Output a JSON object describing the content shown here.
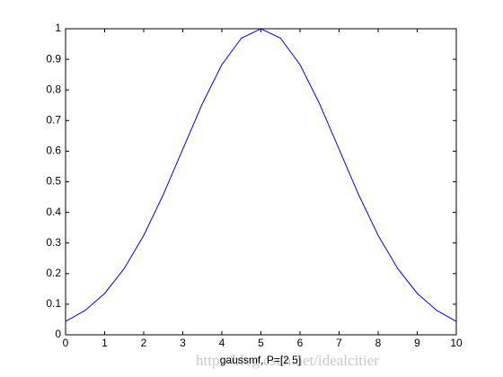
{
  "chart_data": {
    "type": "line",
    "xlabel": "gaussmf, P=[2 5]",
    "watermark": "http://blog.csdn.net/idealcitier",
    "x": [
      0,
      0.5,
      1,
      1.5,
      2,
      2.5,
      3,
      3.5,
      4,
      4.5,
      5,
      5.5,
      6,
      6.5,
      7,
      7.5,
      8,
      8.5,
      9,
      9.5,
      10
    ],
    "series": [
      {
        "color": "#0000ff",
        "values": [
          0.0439,
          0.0796,
          0.1353,
          0.2163,
          0.3247,
          0.4578,
          0.6065,
          0.7548,
          0.8825,
          0.9692,
          1,
          0.9692,
          0.8825,
          0.7548,
          0.6065,
          0.4578,
          0.3247,
          0.2163,
          0.1353,
          0.0796,
          0.0439
        ]
      }
    ],
    "xlim": [
      0,
      10
    ],
    "xticks": [
      0,
      1,
      2,
      3,
      4,
      5,
      6,
      7,
      8,
      9,
      10
    ],
    "ylim": [
      0,
      1
    ],
    "yticks": [
      0,
      0.1,
      0.2,
      0.3,
      0.4,
      0.5,
      0.6,
      0.7,
      0.8,
      0.9,
      1
    ]
  }
}
